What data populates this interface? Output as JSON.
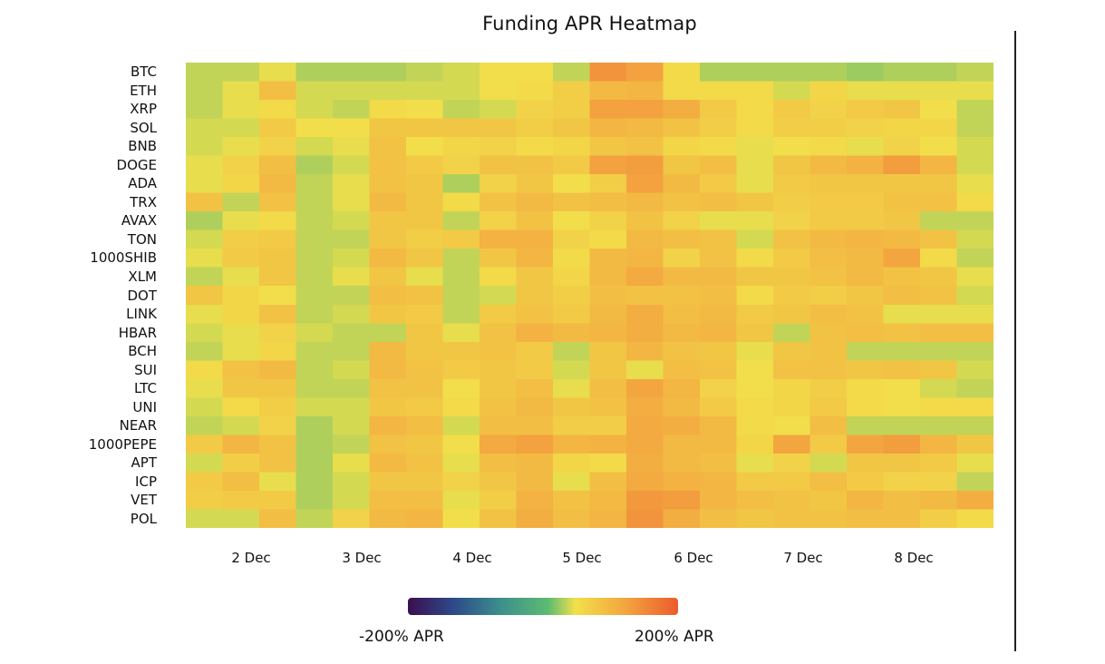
{
  "chart_data": {
    "type": "heatmap",
    "title": "Funding APR Heatmap",
    "rows": [
      "BTC",
      "ETH",
      "XRP",
      "SOL",
      "BNB",
      "DOGE",
      "ADA",
      "TRX",
      "AVAX",
      "TON",
      "1000SHIB",
      "XLM",
      "DOT",
      "LINK",
      "HBAR",
      "BCH",
      "SUI",
      "LTC",
      "UNI",
      "NEAR",
      "1000PEPE",
      "APT",
      "ICP",
      "VET",
      "POL"
    ],
    "x_ticks": [
      "2 Dec",
      "3 Dec",
      "4 Dec",
      "5 Dec",
      "6 Dec",
      "7 Dec",
      "8 Dec"
    ],
    "colorbar": {
      "min_label": "-200% APR",
      "max_label": "200% APR",
      "min": -200,
      "max": 200,
      "stops": [
        "#3b0f4f",
        "#2d4a8a",
        "#3c8e8c",
        "#5dbb73",
        "#f2e04a",
        "#f3a33f",
        "#ec5b2e"
      ]
    },
    "values_apr": [
      [
        35,
        35,
        45,
        30,
        30,
        30,
        35,
        40,
        50,
        50,
        35,
        140,
        125,
        55,
        30,
        30,
        30,
        30,
        25,
        30,
        30,
        35
      ],
      [
        35,
        45,
        90,
        40,
        40,
        40,
        40,
        40,
        50,
        55,
        70,
        95,
        100,
        55,
        55,
        55,
        40,
        60,
        45,
        45,
        45,
        45
      ],
      [
        35,
        45,
        55,
        40,
        35,
        55,
        50,
        35,
        40,
        65,
        70,
        125,
        125,
        110,
        75,
        55,
        75,
        65,
        75,
        80,
        50,
        35
      ],
      [
        40,
        40,
        75,
        50,
        50,
        80,
        80,
        80,
        80,
        70,
        80,
        100,
        95,
        85,
        70,
        55,
        70,
        70,
        65,
        60,
        60,
        35
      ],
      [
        40,
        45,
        65,
        40,
        45,
        85,
        50,
        60,
        65,
        55,
        60,
        80,
        85,
        60,
        55,
        45,
        50,
        55,
        45,
        65,
        50,
        40
      ],
      [
        45,
        65,
        90,
        30,
        40,
        85,
        75,
        65,
        85,
        85,
        75,
        125,
        130,
        80,
        90,
        45,
        80,
        95,
        105,
        130,
        100,
        40
      ],
      [
        45,
        60,
        95,
        35,
        45,
        85,
        80,
        30,
        65,
        80,
        50,
        70,
        125,
        95,
        75,
        45,
        75,
        80,
        80,
        80,
        80,
        45
      ],
      [
        85,
        35,
        85,
        35,
        45,
        95,
        80,
        55,
        85,
        95,
        85,
        90,
        95,
        85,
        90,
        80,
        70,
        75,
        75,
        85,
        85,
        55
      ],
      [
        30,
        45,
        55,
        35,
        40,
        80,
        80,
        35,
        65,
        85,
        50,
        65,
        85,
        65,
        45,
        45,
        65,
        75,
        75,
        80,
        35,
        35
      ],
      [
        40,
        70,
        75,
        35,
        35,
        80,
        70,
        75,
        105,
        105,
        65,
        55,
        95,
        90,
        85,
        40,
        85,
        95,
        100,
        95,
        85,
        40
      ],
      [
        45,
        75,
        80,
        35,
        40,
        95,
        80,
        35,
        80,
        100,
        55,
        95,
        100,
        65,
        85,
        55,
        75,
        90,
        95,
        120,
        55,
        35
      ],
      [
        35,
        45,
        80,
        35,
        45,
        80,
        45,
        35,
        55,
        80,
        60,
        95,
        115,
        95,
        95,
        80,
        80,
        85,
        95,
        85,
        80,
        45
      ],
      [
        80,
        60,
        50,
        35,
        35,
        90,
        85,
        35,
        40,
        80,
        70,
        90,
        85,
        85,
        90,
        55,
        75,
        70,
        80,
        90,
        85,
        40
      ],
      [
        45,
        60,
        85,
        35,
        40,
        80,
        75,
        35,
        75,
        85,
        75,
        95,
        110,
        90,
        95,
        75,
        80,
        90,
        85,
        45,
        45,
        45
      ],
      [
        40,
        45,
        65,
        40,
        35,
        35,
        80,
        45,
        85,
        105,
        95,
        100,
        110,
        95,
        100,
        80,
        35,
        85,
        90,
        85,
        90,
        90
      ],
      [
        35,
        45,
        60,
        35,
        35,
        95,
        80,
        80,
        85,
        75,
        35,
        80,
        100,
        85,
        80,
        45,
        80,
        85,
        35,
        35,
        35,
        35
      ],
      [
        55,
        85,
        95,
        35,
        40,
        95,
        85,
        75,
        80,
        75,
        40,
        80,
        45,
        90,
        85,
        50,
        85,
        85,
        80,
        85,
        80,
        40
      ],
      [
        45,
        80,
        80,
        35,
        35,
        85,
        85,
        50,
        80,
        90,
        45,
        90,
        120,
        100,
        65,
        50,
        60,
        70,
        55,
        50,
        40,
        35
      ],
      [
        40,
        55,
        70,
        40,
        40,
        80,
        75,
        55,
        85,
        95,
        80,
        85,
        110,
        95,
        75,
        55,
        60,
        75,
        55,
        50,
        55,
        55
      ],
      [
        35,
        40,
        65,
        30,
        40,
        100,
        90,
        40,
        90,
        90,
        70,
        70,
        115,
        110,
        95,
        55,
        50,
        90,
        35,
        35,
        35,
        35
      ],
      [
        75,
        100,
        85,
        30,
        35,
        85,
        80,
        50,
        115,
        125,
        100,
        105,
        115,
        95,
        95,
        60,
        120,
        75,
        120,
        130,
        100,
        80
      ],
      [
        40,
        70,
        85,
        30,
        45,
        95,
        85,
        45,
        90,
        95,
        60,
        55,
        110,
        95,
        90,
        45,
        65,
        40,
        80,
        80,
        75,
        45
      ],
      [
        75,
        90,
        45,
        30,
        40,
        80,
        80,
        65,
        80,
        95,
        45,
        90,
        115,
        105,
        100,
        75,
        75,
        90,
        75,
        65,
        65,
        35
      ],
      [
        70,
        75,
        75,
        30,
        40,
        90,
        90,
        45,
        70,
        105,
        85,
        95,
        135,
        130,
        100,
        90,
        85,
        80,
        100,
        90,
        95,
        110
      ],
      [
        40,
        40,
        90,
        35,
        65,
        95,
        100,
        50,
        85,
        110,
        90,
        100,
        140,
        110,
        90,
        80,
        85,
        85,
        90,
        90,
        70,
        55
      ]
    ]
  }
}
